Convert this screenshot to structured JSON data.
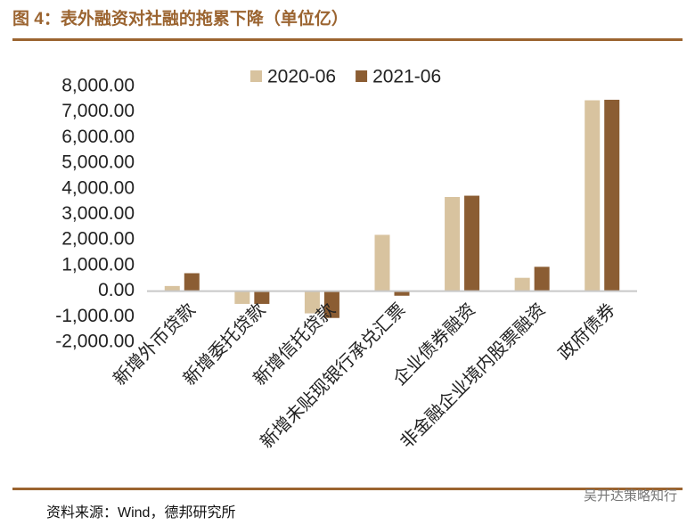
{
  "chart_data": {
    "type": "bar",
    "title": "图 4：表外融资对社融的拖累下降（单位亿）",
    "categories": [
      "新增外币贷款",
      "新增委托贷款",
      "新增信托贷款",
      "新增未贴现银行承兑汇票",
      "企业债券融资",
      "非金融企业境内股票融资",
      "政府债券"
    ],
    "series": [
      {
        "name": "2020-06",
        "color": "#d8c39f",
        "values": [
          200,
          -500,
          -870,
          2200,
          3680,
          520,
          7460
        ]
      },
      {
        "name": "2021-06",
        "color": "#8b5d33",
        "values": [
          700,
          -500,
          -1050,
          -180,
          3730,
          950,
          7480
        ]
      }
    ],
    "ylim": [
      -2000,
      8000
    ],
    "yticks": [
      {
        "value": -2000,
        "label": "-2,000.00"
      },
      {
        "value": -1000,
        "label": "-1,000.00"
      },
      {
        "value": 0,
        "label": "0.00"
      },
      {
        "value": 1000,
        "label": "1,000.00"
      },
      {
        "value": 2000,
        "label": "2,000.00"
      },
      {
        "value": 3000,
        "label": "3,000.00"
      },
      {
        "value": 4000,
        "label": "4,000.00"
      },
      {
        "value": 5000,
        "label": "5,000.00"
      },
      {
        "value": 6000,
        "label": "6,000.00"
      },
      {
        "value": 7000,
        "label": "7,000.00"
      },
      {
        "value": 8000,
        "label": "8,000.00"
      }
    ],
    "grid": false,
    "legend": "top"
  },
  "source": "资料来源：Wind，德邦研究所",
  "watermark": "吴开达策略知行"
}
